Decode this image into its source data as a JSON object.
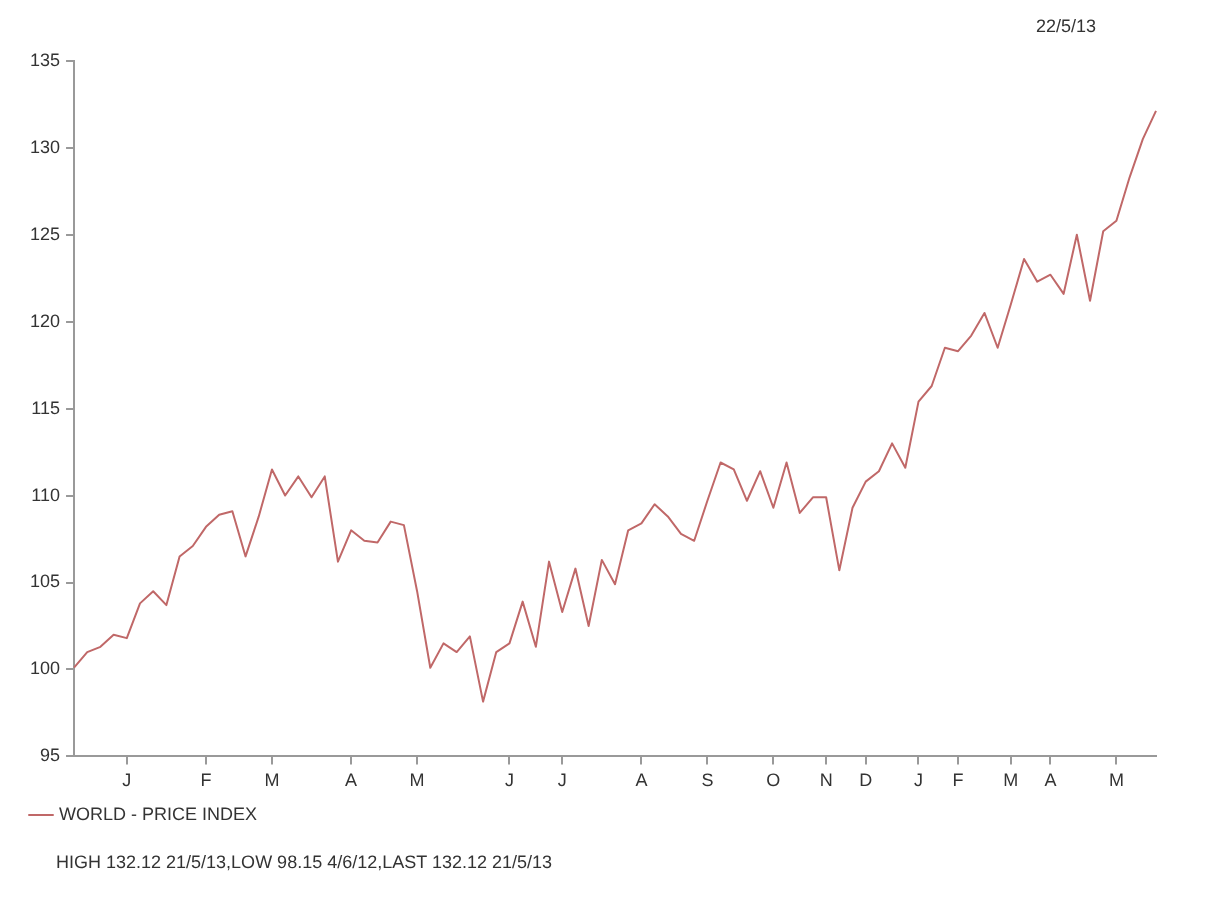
{
  "chart_data": {
    "type": "line",
    "categories": [
      null,
      null,
      null,
      null,
      "J",
      null,
      null,
      null,
      null,
      null,
      "F",
      null,
      null,
      null,
      null,
      "M",
      null,
      null,
      null,
      null,
      null,
      "A",
      null,
      null,
      null,
      null,
      "M",
      null,
      null,
      null,
      null,
      null,
      null,
      "J",
      null,
      null,
      null,
      "J",
      null,
      null,
      null,
      null,
      null,
      "A",
      null,
      null,
      null,
      null,
      "S",
      null,
      null,
      null,
      null,
      "O",
      null,
      null,
      null,
      "N",
      null,
      null,
      "D",
      null,
      null,
      null,
      "J",
      null,
      null,
      "F",
      null,
      null,
      null,
      "M",
      null,
      null,
      "A",
      null,
      null,
      null,
      null,
      "M",
      null,
      null,
      null
    ],
    "ylim": [
      95,
      135
    ],
    "yticks": [
      95,
      100,
      105,
      110,
      115,
      120,
      125,
      130,
      135
    ],
    "grid": false,
    "legend": "bottom left",
    "marker": "none",
    "line_style": "solid",
    "annotations": [
      "22/5/13",
      "HIGH 132.12 21/5/13,LOW 98.15 4/6/12,LAST 132.12 21/5/13"
    ],
    "series": [
      {
        "name": "WORLD - PRICE INDEX",
        "color": "#c06868",
        "values": [
          100.1,
          101.0,
          101.3,
          102.0,
          101.8,
          103.8,
          104.5,
          103.7,
          106.5,
          107.1,
          108.2,
          108.9,
          109.1,
          106.5,
          108.8,
          111.5,
          110.0,
          111.1,
          109.9,
          111.1,
          106.2,
          108.0,
          107.4,
          107.3,
          108.5,
          108.3,
          104.5,
          100.1,
          101.5,
          101.0,
          101.9,
          98.15,
          101.0,
          101.5,
          103.9,
          101.3,
          106.2,
          103.3,
          105.8,
          102.5,
          106.3,
          104.9,
          108.0,
          108.4,
          109.5,
          108.8,
          107.8,
          107.4,
          109.7,
          111.9,
          111.5,
          109.7,
          111.4,
          109.3,
          111.9,
          109.0,
          109.9,
          109.9,
          105.7,
          109.3,
          110.8,
          111.4,
          113.0,
          111.6,
          115.4,
          116.3,
          118.5,
          118.3,
          119.2,
          120.5,
          118.5,
          121.0,
          123.6,
          122.3,
          122.7,
          121.6,
          125.0,
          121.2,
          125.2,
          125.8,
          128.3,
          130.5,
          132.12
        ]
      }
    ]
  }
}
